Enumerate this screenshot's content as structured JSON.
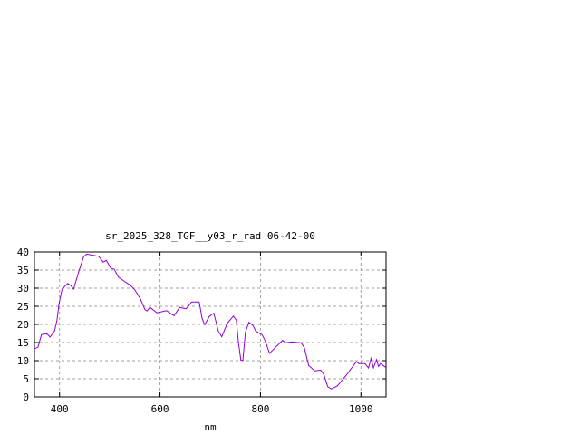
{
  "chart_data": {
    "type": "line",
    "title": "sr_2025_328_TGF__y03_r_rad 06-42-00",
    "xlabel": "nm",
    "ylabel": "",
    "xlim": [
      350,
      1050
    ],
    "ylim": [
      0,
      40
    ],
    "xticks": [
      400,
      600,
      800,
      1000
    ],
    "yticks": [
      0,
      5,
      10,
      15,
      20,
      25,
      30,
      35,
      40
    ],
    "grid": true,
    "line_color": "#9400d3",
    "series": [
      {
        "x": [
          349,
          357,
          364,
          375,
          381,
          390,
          395,
          399,
          405,
          416,
          422,
          428,
          438,
          448,
          454,
          463,
          478,
          487,
          493,
          502,
          509,
          517,
          532,
          541,
          550,
          561,
          570,
          574,
          580,
          594,
          613,
          628,
          639,
          652,
          663,
          678,
          684,
          689,
          698,
          707,
          716,
          723,
          734,
          746,
          752,
          756,
          761,
          765,
          770,
          777,
          785,
          791,
          803,
          810,
          818,
          830,
          844,
          850,
          863,
          881,
          887,
          896,
          908,
          920,
          926,
          934,
          941,
          953,
          971,
          980,
          991,
          996,
          1008,
          1015,
          1020,
          1025,
          1031,
          1035,
          1039,
          1049
        ],
        "y": [
          13.2,
          13.7,
          17.2,
          17.4,
          16.5,
          18.2,
          21.2,
          25.8,
          29.7,
          31.3,
          30.8,
          29.7,
          34.5,
          38.7,
          39.4,
          39.2,
          38.8,
          37.2,
          37.7,
          35.5,
          35.2,
          33.1,
          31.6,
          30.8,
          29.5,
          27.0,
          24.1,
          23.7,
          24.7,
          23.2,
          23.8,
          22.4,
          24.7,
          24.3,
          26.2,
          26.2,
          21.6,
          19.9,
          22.2,
          23.1,
          18.2,
          16.6,
          20.3,
          22.3,
          21.2,
          15.3,
          10.1,
          10.1,
          17.8,
          20.6,
          19.7,
          18.1,
          17.2,
          15.3,
          12.0,
          13.7,
          15.6,
          14.9,
          15.2,
          14.9,
          13.7,
          8.7,
          7.2,
          7.4,
          6.2,
          2.8,
          2.2,
          3.0,
          6.0,
          7.7,
          9.7,
          9.2,
          9.2,
          8.0,
          10.6,
          8.0,
          10.3,
          8.4,
          9.2,
          8.2
        ]
      }
    ]
  }
}
